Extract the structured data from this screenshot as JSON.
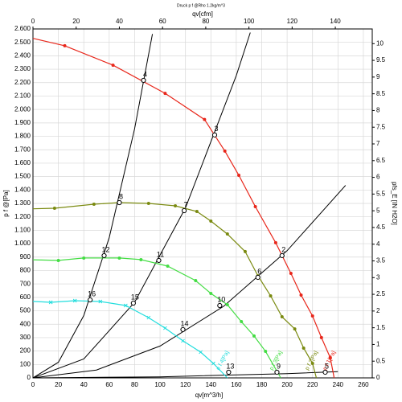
{
  "chart_data": {
    "type": "line",
    "title": "Druck p f @Rho 1.2kg/m^3",
    "x_label": "qv[m^3/h]",
    "x2_label": "qv[cfm]",
    "y_label": "p f @[Pa]",
    "y2_label": "pfs_E [IN H2O]",
    "xlim": [
      0,
      267
    ],
    "xticks": [
      0,
      20,
      40,
      60,
      80,
      100,
      120,
      140,
      160,
      180,
      200,
      220,
      240,
      260
    ],
    "x2lim": [
      0,
      157.1
    ],
    "x2ticks": [
      0,
      20,
      40,
      60,
      80,
      100,
      120,
      140
    ],
    "ylim": [
      0,
      2600
    ],
    "yticks": [
      0,
      100,
      200,
      300,
      400,
      500,
      600,
      700,
      800,
      900,
      {
        "value": 1000,
        "label": "1.000"
      },
      {
        "value": 1100,
        "label": "1.100"
      },
      {
        "value": 1200,
        "label": "1.200"
      },
      {
        "value": 1300,
        "label": "1.300"
      },
      {
        "value": 1400,
        "label": "1.400"
      },
      {
        "value": 1500,
        "label": "1.500"
      },
      {
        "value": 1600,
        "label": "1.600"
      },
      {
        "value": 1700,
        "label": "1.700"
      },
      {
        "value": 1800,
        "label": "1.800"
      },
      {
        "value": 1900,
        "label": "1.900"
      },
      {
        "value": 2000,
        "label": "2.000"
      },
      {
        "value": 2100,
        "label": "2.100"
      },
      {
        "value": 2200,
        "label": "2.200"
      },
      {
        "value": 2300,
        "label": "2.300"
      },
      {
        "value": 2400,
        "label": "2.400"
      },
      {
        "value": 2500,
        "label": "2.500"
      },
      {
        "value": 2600,
        "label": "2.600"
      }
    ],
    "y2lim": [
      0,
      10.44
    ],
    "y2ticks": [
      0,
      0.5,
      1,
      1.5,
      2,
      2.5,
      3,
      3.5,
      4,
      4.5,
      5,
      5.5,
      6,
      6.5,
      7,
      7.5,
      8,
      8.5,
      9,
      9.5,
      10
    ],
    "grid": true,
    "series": [
      {
        "name": "p f 1[Pa]",
        "color": "#e8261a",
        "marker": "circle",
        "x": [
          0,
          25,
          63,
          104,
          135,
          151,
          162,
          175,
          191,
          203,
          211,
          220,
          227,
          234,
          237
        ],
        "values": [
          2530,
          2475,
          2330,
          2120,
          1925,
          1690,
          1510,
          1276,
          1007,
          779,
          617,
          461,
          300,
          150,
          0
        ]
      },
      {
        "name": "p f 2[Pa]",
        "color": "#7a8a10",
        "marker": "circle",
        "x": [
          0,
          17,
          48,
          68,
          91,
          112,
          129,
          140,
          153,
          167,
          177,
          187,
          196,
          206,
          213,
          220,
          223
        ],
        "values": [
          1260,
          1264,
          1294,
          1306,
          1300,
          1282,
          1240,
          1168,
          1072,
          941,
          761,
          611,
          455,
          365,
          222,
          108,
          0
        ]
      },
      {
        "name": "p f 3[Pa]",
        "color": "#44dd44",
        "marker": "circle",
        "x": [
          0,
          20,
          40,
          68,
          85,
          106,
          128,
          140,
          153,
          164,
          174,
          183,
          195
        ],
        "values": [
          880,
          875,
          893,
          893,
          881,
          833,
          725,
          629,
          545,
          419,
          312,
          198,
          0
        ]
      },
      {
        "name": "p f 4[Pa]",
        "color": "#22dddd",
        "marker": "cross",
        "x": [
          0,
          14,
          33,
          53,
          73,
          91,
          104,
          118,
          132,
          142,
          153
        ],
        "values": [
          570,
          563,
          575,
          569,
          539,
          449,
          371,
          276,
          192,
          108,
          0
        ]
      }
    ],
    "system_curves": [
      {
        "x": [
          0,
          20,
          40,
          60,
          80,
          94
        ],
        "values": [
          0,
          116,
          464,
          1044,
          1856,
          2562
        ]
      },
      {
        "x": [
          0,
          40,
          80,
          120,
          160,
          171
        ],
        "values": [
          0,
          141,
          563,
          1267,
          2253,
          2573
        ]
      },
      {
        "x": [
          0,
          50,
          100,
          150,
          200,
          246
        ],
        "values": [
          0,
          59,
          237,
          533,
          948,
          1434
        ]
      },
      {
        "x": [
          0,
          100,
          200,
          240
        ],
        "values": [
          0,
          8,
          32,
          46
        ]
      }
    ],
    "operating_points": [
      {
        "label": "2",
        "x": 196,
        "y": 911
      },
      {
        "label": "3",
        "x": 143,
        "y": 1810
      },
      {
        "label": "4",
        "x": 87,
        "y": 2217
      },
      {
        "label": "5",
        "x": 230,
        "y": 42
      },
      {
        "label": "6",
        "x": 177,
        "y": 749
      },
      {
        "label": "7",
        "x": 119,
        "y": 1246
      },
      {
        "label": "8",
        "x": 68,
        "y": 1306
      },
      {
        "label": "9",
        "x": 192,
        "y": 42
      },
      {
        "label": "10",
        "x": 147,
        "y": 539
      },
      {
        "label": "11",
        "x": 99,
        "y": 875
      },
      {
        "label": "12",
        "x": 56,
        "y": 911
      },
      {
        "label": "13",
        "x": 154,
        "y": 42
      },
      {
        "label": "14",
        "x": 118,
        "y": 360
      },
      {
        "label": "15",
        "x": 79,
        "y": 557
      },
      {
        "label": "16",
        "x": 45,
        "y": 581
      }
    ]
  }
}
